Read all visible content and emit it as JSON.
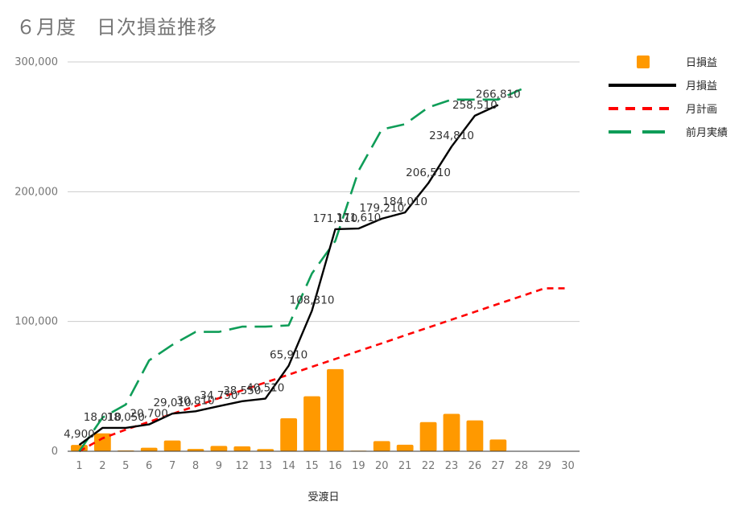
{
  "chart_data": {
    "type": "line",
    "title": "６月度　日次損益推移",
    "xlabel": "受渡日",
    "ylabel": "",
    "ylim": [
      0,
      300000
    ],
    "yticks": [
      "0",
      "100,000",
      "200,000",
      "300,000"
    ],
    "yticks_values": [
      0,
      100000,
      200000,
      300000
    ],
    "categories": [
      "1",
      "2",
      "5",
      "6",
      "7",
      "8",
      "9",
      "12",
      "13",
      "14",
      "15",
      "16",
      "19",
      "20",
      "21",
      "22",
      "23",
      "26",
      "27",
      "28",
      "29",
      "30"
    ],
    "grid": true,
    "legend_position": "right",
    "series": [
      {
        "name": "日損益",
        "kind": "bar",
        "color": "#ff9900",
        "values": [
          4900,
          13800,
          600,
          2700,
          8300,
          1800,
          4100,
          3800,
          1700,
          25400,
          42400,
          63300,
          500,
          7800,
          5000,
          22500,
          28800,
          23800,
          9100,
          null,
          null,
          null
        ]
      },
      {
        "name": "月損益",
        "kind": "line",
        "style": "solid",
        "color": "#000000",
        "values": [
          4900,
          18010,
          18050,
          20700,
          29010,
          30810,
          34750,
          38550,
          40510,
          65910,
          108310,
          171110,
          171610,
          179210,
          184010,
          206510,
          234810,
          258510,
          266810,
          null,
          null,
          null
        ]
      },
      {
        "name": "月計画",
        "kind": "line",
        "style": "dash",
        "color": "#ff0000",
        "values": [
          0,
          10000,
          16700,
          22700,
          28800,
          34800,
          40900,
          46900,
          53000,
          59000,
          65100,
          71100,
          77200,
          83200,
          89300,
          95300,
          101400,
          107400,
          113500,
          119500,
          125600,
          125600
        ]
      },
      {
        "name": "前月実績",
        "kind": "line",
        "style": "longdash",
        "color": "#0f9d58",
        "values": [
          0,
          26000,
          36000,
          70000,
          82000,
          92000,
          92000,
          96000,
          96000,
          97000,
          137000,
          162000,
          216000,
          248000,
          252000,
          265000,
          271000,
          271000,
          271000,
          279000,
          null,
          null
        ]
      }
    ],
    "data_labels": [
      {
        "series": "月損益",
        "index": 0,
        "text": "4,900"
      },
      {
        "series": "月損益",
        "index": 1,
        "text": "18,010"
      },
      {
        "series": "月損益",
        "index": 2,
        "text": "18,050"
      },
      {
        "series": "月損益",
        "index": 3,
        "text": "20,700"
      },
      {
        "series": "月損益",
        "index": 4,
        "text": "29,010"
      },
      {
        "series": "月損益",
        "index": 5,
        "text": "30,810"
      },
      {
        "series": "月損益",
        "index": 6,
        "text": "34,750"
      },
      {
        "series": "月損益",
        "index": 7,
        "text": "38,550"
      },
      {
        "series": "月損益",
        "index": 8,
        "text": "40,510"
      },
      {
        "series": "月損益",
        "index": 9,
        "text": "65,910"
      },
      {
        "series": "月損益",
        "index": 10,
        "text": "108,310"
      },
      {
        "series": "月損益",
        "index": 11,
        "text": "171,110"
      },
      {
        "series": "月損益",
        "index": 12,
        "text": "171,610"
      },
      {
        "series": "月損益",
        "index": 13,
        "text": "179,210"
      },
      {
        "series": "月損益",
        "index": 14,
        "text": "184,010"
      },
      {
        "series": "月損益",
        "index": 15,
        "text": "206,510"
      },
      {
        "series": "月損益",
        "index": 16,
        "text": "234,810"
      },
      {
        "series": "月損益",
        "index": 17,
        "text": "258,510"
      },
      {
        "series": "月損益",
        "index": 18,
        "text": "266,810"
      }
    ]
  }
}
